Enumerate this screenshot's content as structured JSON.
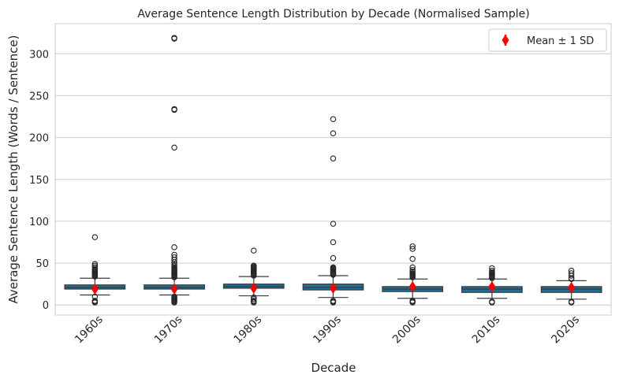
{
  "chart_data": {
    "type": "box",
    "title": "Average Sentence Length Distribution by Decade (Normalised Sample)",
    "xlabel": "Decade",
    "ylabel": "Average Sentence Length (Words / Sentence)",
    "categories": [
      "1960s",
      "1970s",
      "1980s",
      "1990s",
      "2000s",
      "2010s",
      "2020s"
    ],
    "ylim": [
      -12,
      336
    ],
    "yticks": [
      0,
      50,
      100,
      150,
      200,
      250,
      300
    ],
    "grid": "horizontal",
    "legend": {
      "position": "top-right",
      "label": "Mean ± 1 SD"
    },
    "colors": {
      "box": "#1f6f96",
      "mean": "#ff0000",
      "grid": "#cccccc",
      "spine": "#cccccc"
    },
    "boxes": [
      {
        "q1": 19,
        "median": 21,
        "q3": 24,
        "whislo": 12,
        "whishi": 32,
        "mean": 19,
        "sd": 4,
        "fliers": [
          3,
          4,
          5,
          10,
          34,
          35,
          36,
          37,
          38,
          39,
          40,
          41,
          42,
          43,
          45,
          47,
          49,
          81
        ]
      },
      {
        "q1": 19,
        "median": 21,
        "q3": 24,
        "whislo": 12,
        "whishi": 32,
        "mean": 19,
        "sd": 4,
        "fliers": [
          3,
          4,
          5,
          6,
          7,
          8,
          9,
          10,
          33,
          34,
          35,
          36,
          37,
          38,
          39,
          40,
          41,
          42,
          43,
          44,
          45,
          47,
          49,
          51,
          54,
          57,
          60,
          69,
          188,
          233,
          234,
          318,
          319
        ]
      },
      {
        "q1": 20,
        "median": 22,
        "q3": 25,
        "whislo": 11,
        "whishi": 34,
        "mean": 20,
        "sd": 4,
        "fliers": [
          3,
          4,
          5,
          7,
          9,
          35,
          36,
          37,
          38,
          39,
          40,
          41,
          42,
          43,
          44,
          45,
          46,
          47,
          65
        ]
      },
      {
        "q1": 18,
        "median": 21,
        "q3": 25,
        "whislo": 9,
        "whishi": 35,
        "mean": 20,
        "sd": 5,
        "fliers": [
          3,
          4,
          5,
          36,
          37,
          38,
          39,
          40,
          41,
          42,
          43,
          44,
          45,
          56,
          75,
          97,
          175,
          205,
          222
        ]
      },
      {
        "q1": 16,
        "median": 19,
        "q3": 22,
        "whislo": 8,
        "whishi": 31,
        "mean": 22,
        "sd": 4,
        "fliers": [
          3,
          4,
          5,
          33,
          34,
          35,
          36,
          37,
          38,
          40,
          42,
          45,
          55,
          67,
          70
        ]
      },
      {
        "q1": 15,
        "median": 19,
        "q3": 22,
        "whislo": 8,
        "whishi": 31,
        "mean": 22,
        "sd": 4,
        "fliers": [
          3,
          4,
          32,
          33,
          34,
          35,
          36,
          37,
          38,
          39,
          41,
          44
        ]
      },
      {
        "q1": 15,
        "median": 19,
        "q3": 22,
        "whislo": 7,
        "whishi": 29,
        "mean": 21,
        "sd": 4,
        "fliers": [
          3,
          4,
          31,
          32,
          35,
          38,
          41
        ]
      }
    ]
  }
}
